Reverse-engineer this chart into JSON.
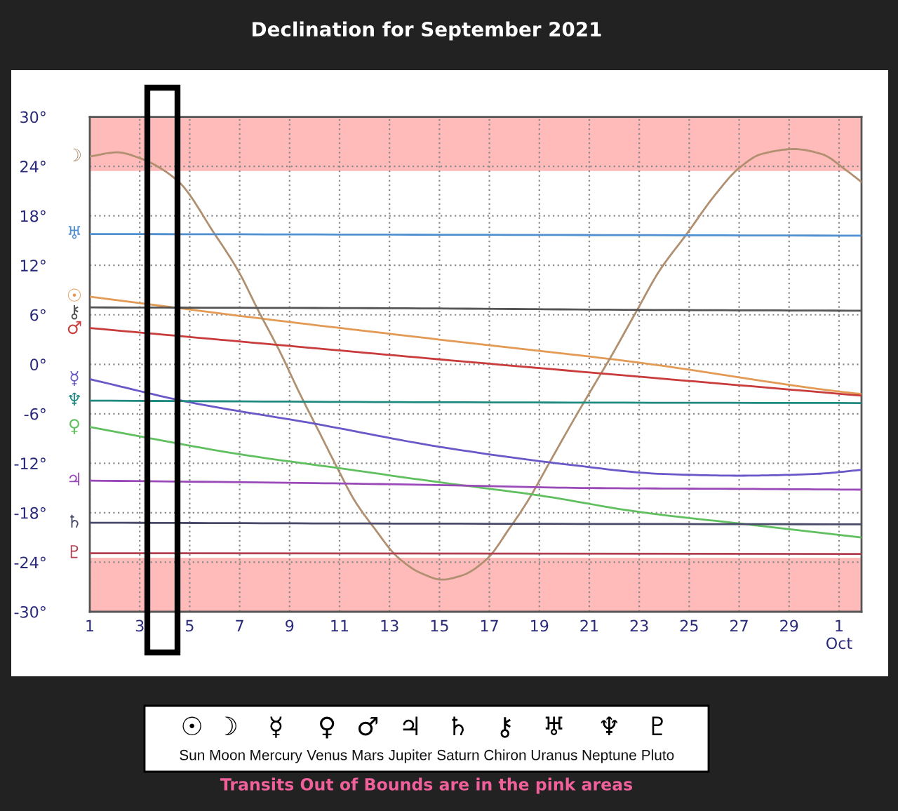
{
  "chart_data": {
    "type": "line",
    "title": "Declination for September 2021",
    "xlim": [
      1,
      31.9
    ],
    "xticks": [
      1,
      3,
      5,
      7,
      9,
      11,
      13,
      15,
      17,
      19,
      21,
      23,
      25,
      27,
      29,
      {
        "value": 31,
        "label": "1\nOct"
      }
    ],
    "ylim": [
      -30,
      30
    ],
    "yticks": [
      {
        "value": 30,
        "label": "30°"
      },
      {
        "value": 24,
        "label": "24°"
      },
      {
        "value": 18,
        "label": "18°"
      },
      {
        "value": 12,
        "label": "12°"
      },
      {
        "value": 6,
        "label": "6°"
      },
      {
        "value": 0,
        "label": "0°"
      },
      {
        "value": -6,
        "label": "-6°"
      },
      {
        "value": -12,
        "label": "-12°"
      },
      {
        "value": -18,
        "label": "-18°"
      },
      {
        "value": -24,
        "label": "-24°"
      },
      {
        "value": -30,
        "label": "-30°"
      }
    ],
    "grid": true,
    "legend": "left",
    "line_style": "solid",
    "marker": "none",
    "bands": [
      {
        "axis": "y",
        "from": 23.44,
        "to": 30,
        "color": "#ffbaba"
      },
      {
        "axis": "y",
        "from": -30,
        "to": -23.44,
        "color": "#ffbaba"
      }
    ],
    "series": [
      {
        "name": "☉",
        "color": "#e39a55",
        "x": [
          1,
          8,
          15,
          23,
          31,
          31.9
        ],
        "values": [
          8.2,
          5.5,
          3.0,
          0.2,
          -3.3,
          -3.6
        ]
      },
      {
        "name": "☽",
        "color": "#b09070",
        "x": [
          1,
          2.1,
          3.0,
          4.5,
          6.0,
          6.95,
          7.75,
          8.6,
          9.4,
          10.15,
          10.9,
          11.6,
          12.4,
          13.3,
          14.25,
          15.1,
          15.9,
          16.9,
          17.8,
          18.55,
          19.5,
          20.4,
          21.0,
          21.9,
          22.9,
          23.8,
          24.9,
          26.0,
          27.0,
          27.9,
          29.2,
          30.3,
          31.3,
          31.9
        ],
        "values": [
          25.2,
          25.7,
          25.0,
          22.3,
          15.8,
          11.3,
          6.5,
          1.6,
          -3.5,
          -8.0,
          -12.5,
          -16.5,
          -19.9,
          -23.3,
          -25.3,
          -26.1,
          -25.6,
          -23.6,
          -19.9,
          -16.5,
          -11.4,
          -6.6,
          -3.5,
          1.1,
          6.5,
          11.3,
          15.8,
          20.4,
          23.8,
          25.5,
          26.1,
          25.5,
          23.5,
          22.1
        ]
      },
      {
        "name": "☿",
        "color": "#6858c8",
        "x": [
          1,
          5,
          10,
          15,
          20,
          24,
          27,
          30,
          31.9
        ],
        "values": [
          -1.8,
          -4.6,
          -7.2,
          -10.0,
          -12.1,
          -13.3,
          -13.5,
          -13.3,
          -12.8
        ]
      },
      {
        "name": "♀",
        "color": "#60c060",
        "x": [
          1,
          7,
          11,
          15,
          19,
          23,
          27,
          31.9
        ],
        "values": [
          -7.6,
          -10.9,
          -12.6,
          -14.3,
          -15.9,
          -17.9,
          -19.3,
          -21.0
        ]
      },
      {
        "name": "♂",
        "color": "#c83c3c",
        "x": [
          1,
          8,
          15,
          23,
          31.9
        ],
        "values": [
          4.4,
          2.5,
          0.6,
          -1.5,
          -3.8
        ]
      },
      {
        "name": "♃",
        "color": "#9a4ab8",
        "x": [
          1,
          10,
          16,
          21,
          27,
          31.9
        ],
        "values": [
          -14.1,
          -14.4,
          -14.7,
          -15.0,
          -15.1,
          -15.2
        ]
      },
      {
        "name": "♄",
        "color": "#4a4a6a",
        "x": [
          1,
          12,
          31.9
        ],
        "values": [
          -19.2,
          -19.3,
          -19.4
        ]
      },
      {
        "name": "⚷",
        "color": "#555555",
        "x": [
          1,
          13,
          23,
          31.9
        ],
        "values": [
          6.9,
          6.8,
          6.6,
          6.5
        ]
      },
      {
        "name": "♅",
        "color": "#5090d0",
        "x": [
          1,
          17,
          31.9
        ],
        "values": [
          15.8,
          15.7,
          15.6
        ]
      },
      {
        "name": "♆",
        "color": "#208a80",
        "x": [
          1,
          15,
          31.9
        ],
        "values": [
          -4.4,
          -4.6,
          -4.7
        ]
      },
      {
        "name": "♇",
        "color": "#b04050",
        "x": [
          1,
          31.9
        ],
        "values": [
          -22.9,
          -23.0
        ]
      }
    ],
    "annotations": [
      "Sun",
      "Moon",
      "Mercury",
      "Venus",
      "Mars",
      "Jupiter",
      "Saturn",
      "Chiron",
      "Uranus",
      "Neptune",
      "Pluto",
      "Transits Out of Bounds are in the pink areas"
    ]
  }
}
